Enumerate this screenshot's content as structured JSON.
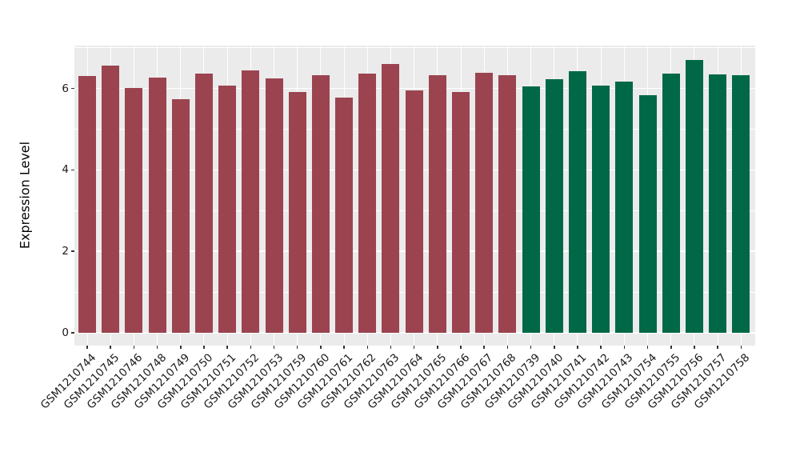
{
  "chart_data": {
    "type": "bar",
    "title": "",
    "xlabel": "",
    "ylabel": "Expression Level",
    "ylim": [
      0,
      7.05
    ],
    "yticks": [
      0,
      2,
      4,
      6
    ],
    "yminor": [
      1,
      3,
      5,
      7
    ],
    "grid": true,
    "legend_position": "none",
    "panel_background": "#EBEBEB",
    "grid_color": "#FFFFFF",
    "axis_text_color": "#1a1a1a",
    "groups": {
      "group1": {
        "color": "#9B4450"
      },
      "group2": {
        "color": "#006847"
      }
    },
    "samples": [
      {
        "id": "GSM1210744",
        "value": 6.3,
        "group": "group1"
      },
      {
        "id": "GSM1210745",
        "value": 6.56,
        "group": "group1"
      },
      {
        "id": "GSM1210746",
        "value": 6.02,
        "group": "group1"
      },
      {
        "id": "GSM1210748",
        "value": 6.27,
        "group": "group1"
      },
      {
        "id": "GSM1210749",
        "value": 5.74,
        "group": "group1"
      },
      {
        "id": "GSM1210750",
        "value": 6.36,
        "group": "group1"
      },
      {
        "id": "GSM1210751",
        "value": 6.07,
        "group": "group1"
      },
      {
        "id": "GSM1210752",
        "value": 6.44,
        "group": "group1"
      },
      {
        "id": "GSM1210753",
        "value": 6.24,
        "group": "group1"
      },
      {
        "id": "GSM1210759",
        "value": 5.92,
        "group": "group1"
      },
      {
        "id": "GSM1210760",
        "value": 6.33,
        "group": "group1"
      },
      {
        "id": "GSM1210761",
        "value": 5.77,
        "group": "group1"
      },
      {
        "id": "GSM1210762",
        "value": 6.37,
        "group": "group1"
      },
      {
        "id": "GSM1210763",
        "value": 6.6,
        "group": "group1"
      },
      {
        "id": "GSM1210764",
        "value": 5.95,
        "group": "group1"
      },
      {
        "id": "GSM1210765",
        "value": 6.32,
        "group": "group1"
      },
      {
        "id": "GSM1210766",
        "value": 5.91,
        "group": "group1"
      },
      {
        "id": "GSM1210767",
        "value": 6.39,
        "group": "group1"
      },
      {
        "id": "GSM1210768",
        "value": 6.33,
        "group": "group1"
      },
      {
        "id": "GSM1210739",
        "value": 6.06,
        "group": "group2"
      },
      {
        "id": "GSM1210740",
        "value": 6.23,
        "group": "group2"
      },
      {
        "id": "GSM1210741",
        "value": 6.43,
        "group": "group2"
      },
      {
        "id": "GSM1210742",
        "value": 6.08,
        "group": "group2"
      },
      {
        "id": "GSM1210743",
        "value": 6.18,
        "group": "group2"
      },
      {
        "id": "GSM1210754",
        "value": 5.83,
        "group": "group2"
      },
      {
        "id": "GSM1210755",
        "value": 6.37,
        "group": "group2"
      },
      {
        "id": "GSM1210756",
        "value": 6.71,
        "group": "group2"
      },
      {
        "id": "GSM1210757",
        "value": 6.34,
        "group": "group2"
      },
      {
        "id": "GSM1210758",
        "value": 6.33,
        "group": "group2"
      }
    ]
  }
}
